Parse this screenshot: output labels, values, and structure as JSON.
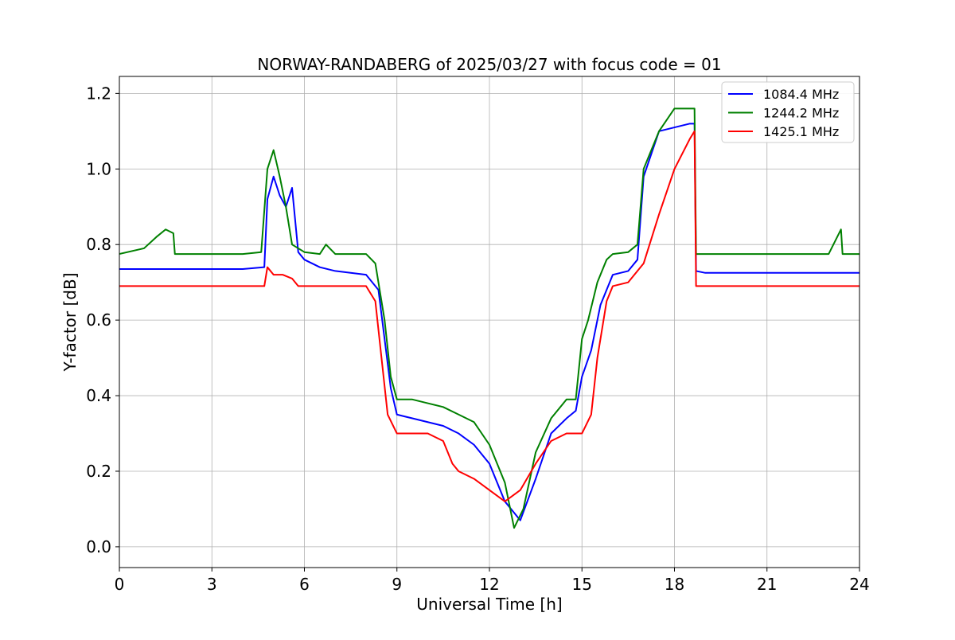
{
  "chart_data": {
    "type": "line",
    "title": "NORWAY-RANDABERG of 2025/03/27 with focus code = 01",
    "xlabel": "Universal Time [h]",
    "ylabel": "Y-factor [dB]",
    "xlim": [
      0,
      24
    ],
    "ylim": [
      -0.055,
      1.245
    ],
    "xticks": [
      0,
      3,
      6,
      9,
      12,
      15,
      18,
      21,
      24
    ],
    "yticks": [
      0.0,
      0.2,
      0.4,
      0.6,
      0.8,
      1.0,
      1.2
    ],
    "xtick_labels": [
      "0",
      "3",
      "6",
      "9",
      "12",
      "15",
      "18",
      "21",
      "24"
    ],
    "ytick_labels": [
      "0.0",
      "0.2",
      "0.4",
      "0.6",
      "0.8",
      "1.0",
      "1.2"
    ],
    "grid": true,
    "legend_position": "top-right",
    "series": [
      {
        "name": "1084.4 MHz",
        "color": "#0000ff",
        "x": [
          0,
          1,
          2,
          3,
          4,
          4.7,
          4.8,
          5.0,
          5.2,
          5.4,
          5.6,
          5.8,
          6.0,
          6.5,
          7.0,
          8.0,
          8.4,
          8.6,
          8.8,
          9.0,
          9.5,
          10.0,
          10.5,
          11.0,
          11.5,
          12.0,
          12.5,
          13.0,
          13.5,
          14.0,
          14.5,
          14.8,
          15.0,
          15.3,
          15.6,
          16.0,
          16.5,
          16.8,
          17.0,
          17.5,
          18.0,
          18.5,
          18.65,
          18.7,
          19.0,
          20.0,
          21.0,
          22.0,
          23.0,
          24.0
        ],
        "y": [
          0.735,
          0.735,
          0.735,
          0.735,
          0.735,
          0.74,
          0.92,
          0.98,
          0.93,
          0.9,
          0.95,
          0.78,
          0.76,
          0.74,
          0.73,
          0.72,
          0.68,
          0.55,
          0.42,
          0.35,
          0.34,
          0.33,
          0.32,
          0.3,
          0.27,
          0.22,
          0.12,
          0.07,
          0.18,
          0.3,
          0.34,
          0.36,
          0.45,
          0.52,
          0.64,
          0.72,
          0.73,
          0.76,
          0.98,
          1.1,
          1.11,
          1.12,
          1.12,
          0.73,
          0.725,
          0.725,
          0.725,
          0.725,
          0.725,
          0.725
        ]
      },
      {
        "name": "1244.2 MHz",
        "color": "#008000",
        "x": [
          0,
          0.8,
          1.2,
          1.5,
          1.75,
          1.8,
          3.0,
          4.0,
          4.6,
          4.8,
          5.0,
          5.2,
          5.4,
          5.6,
          5.8,
          6.0,
          6.5,
          6.7,
          7.0,
          8.0,
          8.3,
          8.6,
          8.8,
          9.0,
          9.5,
          10.0,
          10.5,
          11.0,
          11.5,
          12.0,
          12.5,
          12.8,
          13.1,
          13.5,
          14.0,
          14.5,
          14.8,
          15.0,
          15.2,
          15.5,
          15.8,
          16.0,
          16.5,
          16.8,
          17.0,
          17.5,
          18.0,
          18.5,
          18.65,
          18.7,
          19.0,
          20.0,
          21.0,
          22.0,
          23.0,
          23.4,
          23.45,
          24.0
        ],
        "y": [
          0.775,
          0.79,
          0.82,
          0.84,
          0.83,
          0.775,
          0.775,
          0.775,
          0.78,
          1.0,
          1.05,
          0.98,
          0.9,
          0.8,
          0.79,
          0.78,
          0.775,
          0.8,
          0.775,
          0.775,
          0.75,
          0.6,
          0.45,
          0.39,
          0.39,
          0.38,
          0.37,
          0.35,
          0.33,
          0.27,
          0.17,
          0.05,
          0.1,
          0.25,
          0.34,
          0.39,
          0.39,
          0.55,
          0.6,
          0.7,
          0.76,
          0.775,
          0.78,
          0.8,
          1.0,
          1.1,
          1.16,
          1.16,
          1.16,
          0.775,
          0.775,
          0.775,
          0.775,
          0.775,
          0.775,
          0.84,
          0.775,
          0.775
        ]
      },
      {
        "name": "1425.1 MHz",
        "color": "#ff0000",
        "x": [
          0,
          1,
          2,
          3,
          4,
          4.7,
          4.8,
          5.0,
          5.3,
          5.6,
          5.8,
          6.0,
          7.0,
          8.0,
          8.3,
          8.5,
          8.7,
          9.0,
          9.5,
          10.0,
          10.5,
          10.8,
          11.0,
          11.5,
          12.0,
          12.5,
          13.0,
          13.5,
          14.0,
          14.5,
          15.0,
          15.3,
          15.5,
          15.8,
          16.0,
          16.5,
          17.0,
          17.5,
          18.0,
          18.5,
          18.65,
          18.7,
          19.0,
          20.0,
          21.0,
          22.0,
          23.0,
          24.0
        ],
        "y": [
          0.69,
          0.69,
          0.69,
          0.69,
          0.69,
          0.69,
          0.74,
          0.72,
          0.72,
          0.71,
          0.69,
          0.69,
          0.69,
          0.69,
          0.65,
          0.5,
          0.35,
          0.3,
          0.3,
          0.3,
          0.28,
          0.22,
          0.2,
          0.18,
          0.15,
          0.12,
          0.15,
          0.22,
          0.28,
          0.3,
          0.3,
          0.35,
          0.5,
          0.65,
          0.69,
          0.7,
          0.75,
          0.88,
          1.0,
          1.08,
          1.1,
          0.69,
          0.69,
          0.69,
          0.69,
          0.69,
          0.69,
          0.69
        ]
      }
    ]
  }
}
